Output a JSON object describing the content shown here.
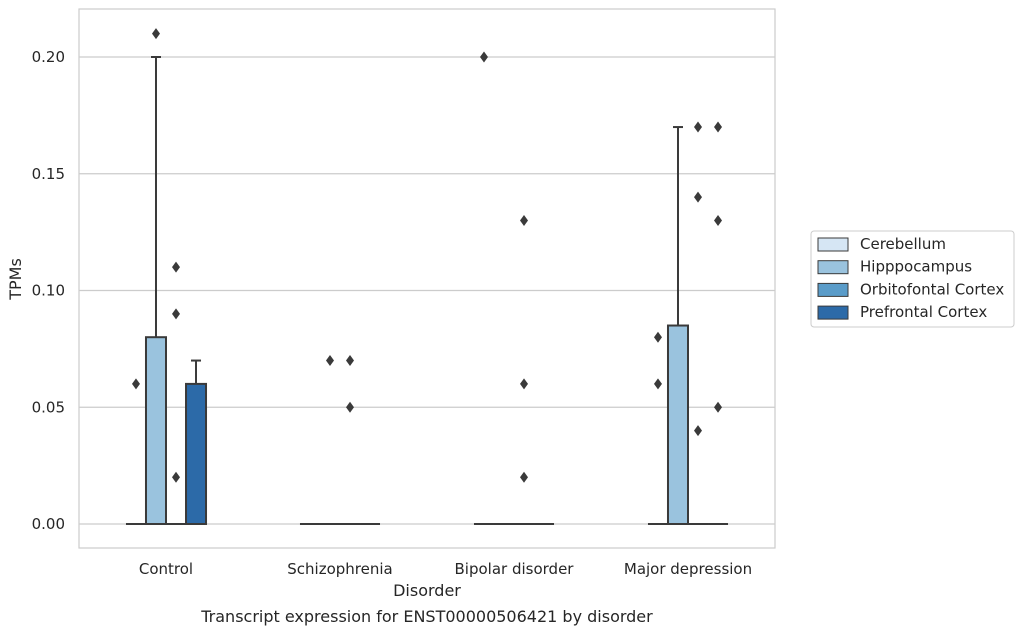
{
  "chart_data": {
    "type": "boxplot",
    "title": "Transcript expression for ENST00000506421 by disorder",
    "xlabel": "Disorder",
    "ylabel": "TPMs",
    "ylim": [
      -0.01,
      0.22
    ],
    "yticks": [
      "0.00",
      "0.05",
      "0.10",
      "0.15",
      "0.20"
    ],
    "ytick_values": [
      0.0,
      0.05,
      0.1,
      0.15,
      0.2
    ],
    "grid": true,
    "legend_position": "right",
    "categories": [
      "Control",
      "Schizophrenia",
      "Bipolar disorder",
      "Major depression"
    ],
    "series": [
      {
        "name": "Cerebellum",
        "color": "#d6e6f4",
        "boxes": [
          {
            "q1": 0,
            "median": 0,
            "q3": 0,
            "whisker_low": 0,
            "whisker_high": 0,
            "outliers": [
              0.06
            ]
          },
          {
            "q1": 0,
            "median": 0,
            "q3": 0,
            "whisker_low": 0,
            "whisker_high": 0,
            "outliers": []
          },
          {
            "q1": 0,
            "median": 0,
            "q3": 0,
            "whisker_low": 0,
            "whisker_high": 0,
            "outliers": [
              0.2
            ]
          },
          {
            "q1": 0,
            "median": 0,
            "q3": 0,
            "whisker_low": 0,
            "whisker_high": 0,
            "outliers": [
              0.08,
              0.06
            ]
          }
        ]
      },
      {
        "name": "Hipppocampus",
        "color": "#9ac3de",
        "boxes": [
          {
            "q1": 0,
            "median": 0,
            "q3": 0.08,
            "whisker_low": 0,
            "whisker_high": 0.2,
            "outliers": [
              0.21
            ]
          },
          {
            "q1": 0,
            "median": 0,
            "q3": 0,
            "whisker_low": 0,
            "whisker_high": 0,
            "outliers": [
              0.07
            ]
          },
          {
            "q1": 0,
            "median": 0,
            "q3": 0,
            "whisker_low": 0,
            "whisker_high": 0,
            "outliers": []
          },
          {
            "q1": 0,
            "median": 0,
            "q3": 0.085,
            "whisker_low": 0,
            "whisker_high": 0.17,
            "outliers": []
          }
        ]
      },
      {
        "name": "Orbitofontal Cortex",
        "color": "#5a9cc9",
        "boxes": [
          {
            "q1": 0,
            "median": 0,
            "q3": 0,
            "whisker_low": 0,
            "whisker_high": 0,
            "outliers": [
              0.11,
              0.09,
              0.02
            ]
          },
          {
            "q1": 0,
            "median": 0,
            "q3": 0,
            "whisker_low": 0,
            "whisker_high": 0,
            "outliers": [
              0.07,
              0.05
            ]
          },
          {
            "q1": 0,
            "median": 0,
            "q3": 0,
            "whisker_low": 0,
            "whisker_high": 0,
            "outliers": [
              0.13,
              0.06,
              0.02
            ]
          },
          {
            "q1": 0,
            "median": 0,
            "q3": 0,
            "whisker_low": 0,
            "whisker_high": 0,
            "outliers": [
              0.17,
              0.14,
              0.04
            ]
          }
        ]
      },
      {
        "name": "Prefrontal Cortex",
        "color": "#2c6aa8",
        "boxes": [
          {
            "q1": 0,
            "median": 0,
            "q3": 0.06,
            "whisker_low": 0,
            "whisker_high": 0.07,
            "outliers": []
          },
          {
            "q1": 0,
            "median": 0,
            "q3": 0,
            "whisker_low": 0,
            "whisker_high": 0,
            "outliers": []
          },
          {
            "q1": 0,
            "median": 0,
            "q3": 0,
            "whisker_low": 0,
            "whisker_high": 0,
            "outliers": []
          },
          {
            "q1": 0,
            "median": 0,
            "q3": 0,
            "whisker_low": 0,
            "whisker_high": 0,
            "outliers": [
              0.17,
              0.13,
              0.05
            ]
          }
        ]
      }
    ]
  }
}
